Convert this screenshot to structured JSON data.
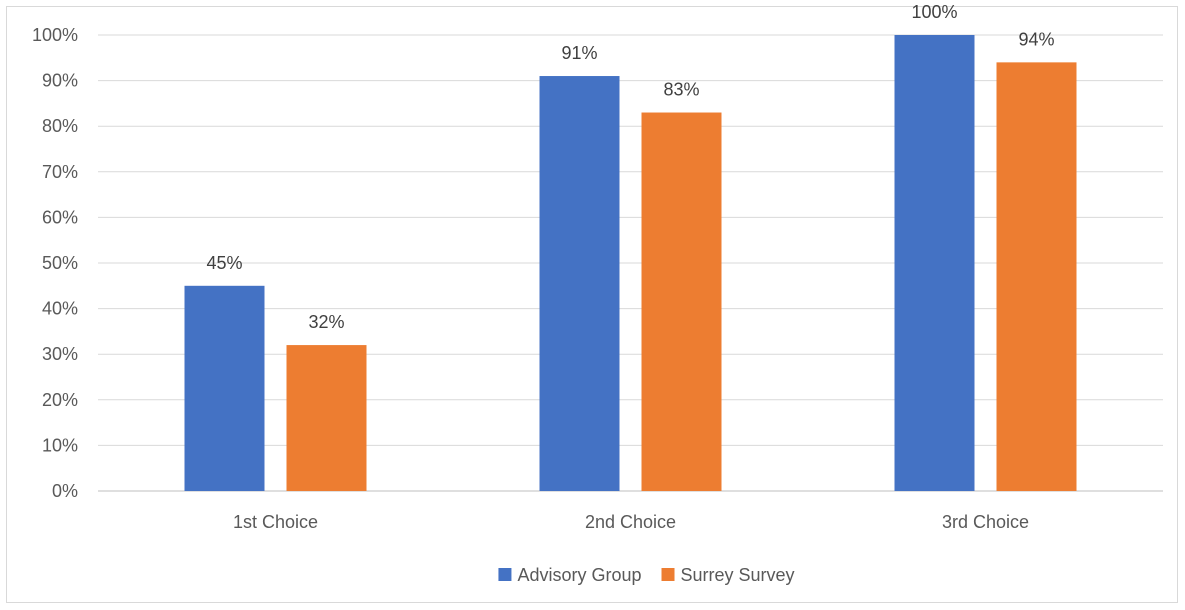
{
  "chart_data": {
    "type": "bar",
    "title": "",
    "xlabel": "",
    "ylabel": "",
    "categories": [
      "1st Choice",
      "2nd Choice",
      "3rd Choice"
    ],
    "series": [
      {
        "name": "Advisory Group",
        "values": [
          45,
          91,
          100
        ],
        "labels": [
          "45%",
          "91%",
          "100%"
        ],
        "color": "#4472C4"
      },
      {
        "name": "Surrey Survey",
        "values": [
          32,
          83,
          94
        ],
        "labels": [
          "32%",
          "83%",
          "94%"
        ],
        "color": "#ED7D31"
      }
    ],
    "ylim": [
      0,
      100
    ],
    "yticks": [
      0,
      10,
      20,
      30,
      40,
      50,
      60,
      70,
      80,
      90,
      100
    ],
    "ytick_labels": [
      "0%",
      "10%",
      "20%",
      "30%",
      "40%",
      "50%",
      "60%",
      "70%",
      "80%",
      "90%",
      "100%"
    ],
    "grid": true,
    "legend": "bottom-center"
  }
}
